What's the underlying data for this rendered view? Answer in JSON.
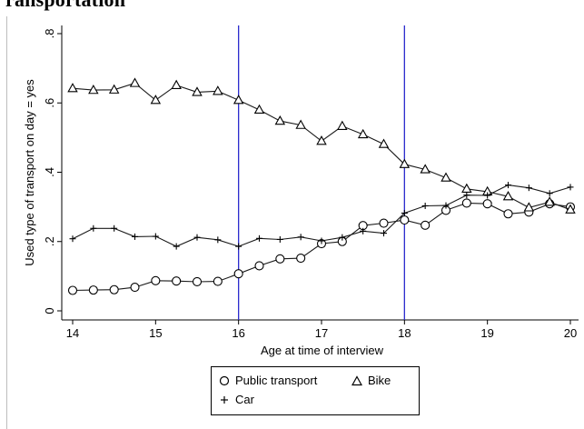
{
  "title": "ransportation",
  "chart_data": {
    "type": "line",
    "xlabel": "Age at time of interview",
    "ylabel": "Used type of transport on day = yes",
    "xlim": [
      14,
      20
    ],
    "ylim": [
      0,
      0.8
    ],
    "x_ticks": [
      14,
      15,
      16,
      17,
      18,
      19,
      20
    ],
    "x_tick_labels": [
      "14",
      "15",
      "16",
      "17",
      "18",
      "19",
      "20"
    ],
    "y_ticks": [
      0,
      0.2,
      0.4,
      0.6,
      0.8
    ],
    "y_tick_labels": [
      "0",
      ".2",
      ".4",
      ".6",
      ".8"
    ],
    "reference_lines_x": [
      16,
      18
    ],
    "reference_line_color": "#2a2acd",
    "grid": false,
    "x": [
      14,
      14.25,
      14.5,
      14.75,
      15,
      15.25,
      15.5,
      15.75,
      16,
      16.25,
      16.5,
      16.75,
      17,
      17.25,
      17.5,
      17.75,
      18,
      18.25,
      18.5,
      18.75,
      19,
      19.25,
      19.5,
      19.75,
      20
    ],
    "series": [
      {
        "name": "Public transport",
        "marker": "circle",
        "values": [
          0.059,
          0.06,
          0.061,
          0.068,
          0.087,
          0.086,
          0.084,
          0.085,
          0.107,
          0.13,
          0.15,
          0.152,
          0.194,
          0.2,
          0.246,
          0.253,
          0.262,
          0.247,
          0.29,
          0.311,
          0.309,
          0.28,
          0.285,
          0.309,
          0.3
        ]
      },
      {
        "name": "Bike",
        "marker": "triangle",
        "values": [
          0.642,
          0.637,
          0.638,
          0.657,
          0.608,
          0.651,
          0.631,
          0.634,
          0.608,
          0.58,
          0.548,
          0.536,
          0.49,
          0.533,
          0.509,
          0.481,
          0.423,
          0.408,
          0.384,
          0.352,
          0.344,
          0.33,
          0.298,
          0.314,
          0.292
        ]
      },
      {
        "name": "Car",
        "marker": "plus",
        "values": [
          0.208,
          0.238,
          0.238,
          0.214,
          0.215,
          0.186,
          0.212,
          0.205,
          0.186,
          0.209,
          0.206,
          0.213,
          0.202,
          0.212,
          0.23,
          0.224,
          0.282,
          0.303,
          0.304,
          0.334,
          0.333,
          0.363,
          0.355,
          0.339,
          0.357
        ]
      }
    ],
    "legend": {
      "position": "bottom",
      "labels": [
        "Public transport",
        "Bike",
        "Car"
      ]
    }
  }
}
